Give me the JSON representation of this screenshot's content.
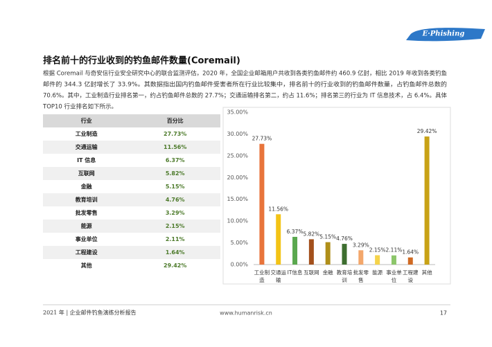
{
  "logo": "E·Phishing",
  "heading": "排名前十的行业收到的钓鱼邮件数量(Coremail)",
  "paragraph": [
    "根据 Coremail 与奇安信行业安全研究中心的联合监测评估，2020 年，全国企业邮箱用户共收到各类钓鱼邮件约 460.9 亿封，相比 2019 年收到各类钓鱼",
    "邮件的 344.3 亿封增长了 33.9%。其数据指出国内钓鱼邮件受害者所在行业比较集中，排名前十的行业收到的钓鱼邮件数量，占钓鱼邮件总数的",
    "70.6%。其中，工业制造行业排名第一，约占钓鱼邮件总数的 27.7%；交通运输排名第二，约占 11.6%；排名第三的行业为 IT 信息技术，占 6.4%。具体",
    "TOP10 行业排名如下所示。"
  ],
  "table": {
    "header": [
      "行业",
      "百分比"
    ],
    "rows": [
      [
        "工业制造",
        "27.73%"
      ],
      [
        "交通运输",
        "11.56%"
      ],
      [
        "IT 信息",
        "6.37%"
      ],
      [
        "互联网",
        "5.82%"
      ],
      [
        "金融",
        "5.15%"
      ],
      [
        "教育培训",
        "4.76%"
      ],
      [
        "批发零售",
        "3.29%"
      ],
      [
        "能源",
        "2.15%"
      ],
      [
        "事业单位",
        "2.11%"
      ],
      [
        "工程建设",
        "1.64%"
      ],
      [
        "其他",
        "29.42%"
      ]
    ]
  },
  "chart_data": {
    "type": "bar",
    "categories": [
      "工业制造",
      "交通运输",
      "IT信息",
      "互联网",
      "金融",
      "教育培训",
      "批发零售",
      "能源",
      "事业单位",
      "工程建设",
      "其他"
    ],
    "values": [
      27.73,
      11.56,
      6.37,
      5.82,
      5.15,
      4.76,
      3.29,
      2.15,
      2.11,
      1.64,
      29.42
    ],
    "value_labels": [
      "27.73%",
      "11.56%",
      "6.37%",
      "5.82%",
      "5.15%",
      "4.76%",
      "3.29%",
      "2.15%",
      "2.11%",
      "1.64%",
      "29.42%"
    ],
    "colors": [
      "#e8743b",
      "#f3c316",
      "#5aa84e",
      "#a3501c",
      "#b08f1a",
      "#3d6e2f",
      "#f3a76b",
      "#f5d34a",
      "#8cc66a",
      "#d06a23",
      "#c8a216"
    ],
    "ylim": [
      0,
      35
    ],
    "yticks": [
      {
        "value": 0,
        "label": "0.00%"
      },
      {
        "value": 5,
        "label": "5.00%"
      },
      {
        "value": 10,
        "label": "10.00%"
      },
      {
        "value": 15,
        "label": "15.00%"
      },
      {
        "value": 20,
        "label": "20.00%"
      },
      {
        "value": 25,
        "label": "25.00%"
      },
      {
        "value": 30,
        "label": "30.00%"
      },
      {
        "value": 35,
        "label": "35.00%"
      }
    ],
    "grid": false
  },
  "footer": {
    "left": "2021 年 | 企业邮件钓鱼演练分析报告",
    "center": "www.humanrisk.cn",
    "page": "17"
  }
}
